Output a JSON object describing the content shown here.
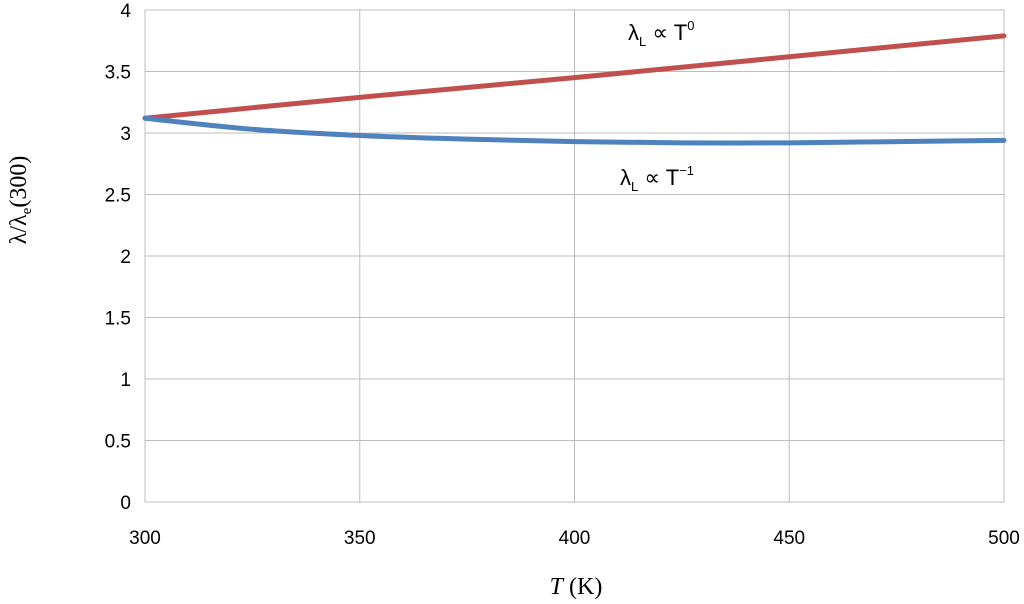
{
  "chart_data": {
    "type": "line",
    "xlabel": {
      "var": "T",
      "unit": " (K)"
    },
    "ylabel": {
      "main": "λ/λ",
      "sub": "e",
      "rest": "(300)"
    },
    "xlim": [
      300,
      500
    ],
    "ylim": [
      0,
      4
    ],
    "xticks": [
      "300",
      "350",
      "400",
      "450",
      "500"
    ],
    "yticks": [
      "0",
      "0.5",
      "1",
      "1.5",
      "2",
      "2.5",
      "3",
      "3.5",
      "4"
    ],
    "grid": true,
    "series": [
      {
        "color": "#c0504d",
        "x": [
          300,
          350,
          400,
          450,
          500
        ],
        "y": [
          3.12,
          3.29,
          3.45,
          3.62,
          3.79
        ]
      },
      {
        "color": "#4f81bd",
        "x": [
          300,
          325,
          350,
          375,
          400,
          425,
          450,
          475,
          500
        ],
        "y": [
          3.12,
          3.03,
          2.98,
          2.95,
          2.93,
          2.92,
          2.92,
          2.93,
          2.94
        ]
      }
    ],
    "annotations": [
      {
        "base": "λ",
        "sub": "L",
        "mid": " ∝ T",
        "sup": "0"
      },
      {
        "base": "λ",
        "sub": "L",
        "mid": " ∝ T",
        "sup": "−1"
      }
    ]
  }
}
